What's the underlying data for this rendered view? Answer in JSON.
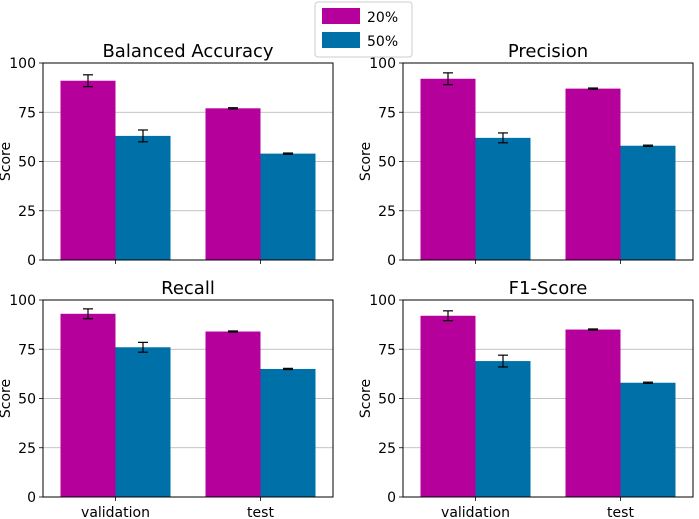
{
  "legend": {
    "placement": "top-center",
    "entries": [
      {
        "label": "20%",
        "color": "#b5009b"
      },
      {
        "label": "50%",
        "color": "#0070a8"
      }
    ]
  },
  "chart_data": [
    {
      "type": "bar",
      "title": "Balanced Accuracy",
      "categories": [
        "validation",
        "test"
      ],
      "series": [
        {
          "name": "20%",
          "values": [
            91,
            77
          ],
          "errors": [
            3,
            0.3
          ]
        },
        {
          "name": "50%",
          "values": [
            63,
            54
          ],
          "errors": [
            3,
            0.3
          ]
        }
      ],
      "xlabel": "",
      "ylabel": "Score",
      "ylim": [
        0,
        100
      ],
      "yticks": [
        "0",
        "25",
        "50",
        "75",
        "100"
      ],
      "grid": "y",
      "show_xticklabels": false
    },
    {
      "type": "bar",
      "title": "Precision",
      "categories": [
        "validation",
        "test"
      ],
      "series": [
        {
          "name": "20%",
          "values": [
            92,
            87
          ],
          "errors": [
            3,
            0.3
          ]
        },
        {
          "name": "50%",
          "values": [
            62,
            58
          ],
          "errors": [
            2.5,
            0.3
          ]
        }
      ],
      "xlabel": "",
      "ylabel": "Score",
      "ylim": [
        0,
        100
      ],
      "yticks": [
        "0",
        "25",
        "50",
        "75",
        "100"
      ],
      "grid": "y",
      "show_xticklabels": false
    },
    {
      "type": "bar",
      "title": "Recall",
      "categories": [
        "validation",
        "test"
      ],
      "series": [
        {
          "name": "20%",
          "values": [
            93,
            84
          ],
          "errors": [
            2.5,
            0.3
          ]
        },
        {
          "name": "50%",
          "values": [
            76,
            65
          ],
          "errors": [
            2.5,
            0.3
          ]
        }
      ],
      "xlabel": "",
      "ylabel": "Score",
      "ylim": [
        0,
        100
      ],
      "yticks": [
        "0",
        "25",
        "50",
        "75",
        "100"
      ],
      "grid": "y",
      "show_xticklabels": true
    },
    {
      "type": "bar",
      "title": "F1-Score",
      "categories": [
        "validation",
        "test"
      ],
      "series": [
        {
          "name": "20%",
          "values": [
            92,
            85
          ],
          "errors": [
            2.5,
            0.3
          ]
        },
        {
          "name": "50%",
          "values": [
            69,
            58
          ],
          "errors": [
            3,
            0.3
          ]
        }
      ],
      "xlabel": "",
      "ylabel": "Score",
      "ylim": [
        0,
        100
      ],
      "yticks": [
        "0",
        "25",
        "50",
        "75",
        "100"
      ],
      "grid": "y",
      "show_xticklabels": true
    }
  ]
}
